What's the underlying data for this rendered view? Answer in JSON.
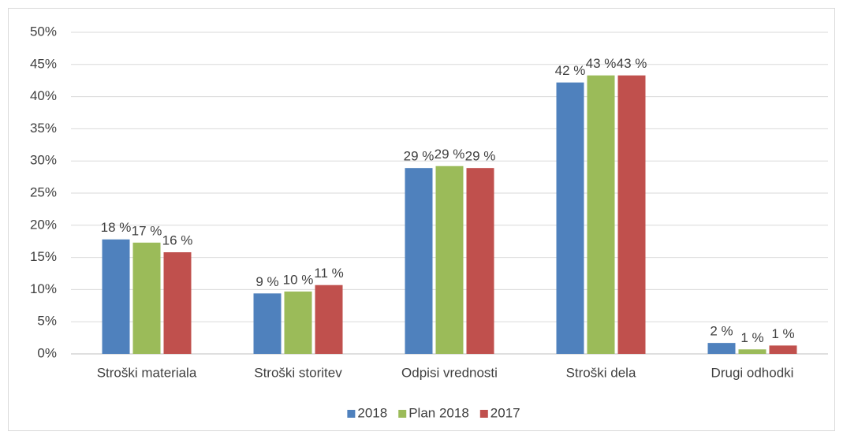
{
  "chart_data": {
    "type": "bar",
    "categories": [
      "Stroški materiala",
      "Stroški storitev",
      "Odpisi vrednosti",
      "Stroški dela",
      "Drugi odhodki"
    ],
    "series": [
      {
        "name": "2018",
        "color": "#4f81bd",
        "values": [
          17.8,
          9.4,
          28.9,
          42.2,
          1.7
        ],
        "value_labels": [
          "18 %",
          "9 %",
          "29 %",
          "42 %",
          "2 %"
        ]
      },
      {
        "name": "Plan 2018",
        "color": "#9bbb59",
        "values": [
          17.3,
          9.7,
          29.2,
          43.3,
          0.7
        ],
        "value_labels": [
          "17 %",
          "10 %",
          "29 %",
          "43 %",
          "1 %"
        ]
      },
      {
        "name": "2017",
        "color": "#c0504d",
        "values": [
          15.8,
          10.7,
          28.9,
          43.3,
          1.3
        ],
        "value_labels": [
          "16 %",
          "11 %",
          "29 %",
          "43 %",
          "1 %"
        ]
      }
    ],
    "ylim": [
      0,
      50
    ],
    "yticks": [
      {
        "value": 0,
        "label": "0%"
      },
      {
        "value": 5,
        "label": "5%"
      },
      {
        "value": 10,
        "label": "10%"
      },
      {
        "value": 15,
        "label": "15%"
      },
      {
        "value": 20,
        "label": "20%"
      },
      {
        "value": 25,
        "label": "25%"
      },
      {
        "value": 30,
        "label": "30%"
      },
      {
        "value": 35,
        "label": "35%"
      },
      {
        "value": 40,
        "label": "40%"
      },
      {
        "value": 45,
        "label": "45%"
      },
      {
        "value": 50,
        "label": "50%"
      }
    ],
    "grid": true,
    "legend": "bottom"
  }
}
